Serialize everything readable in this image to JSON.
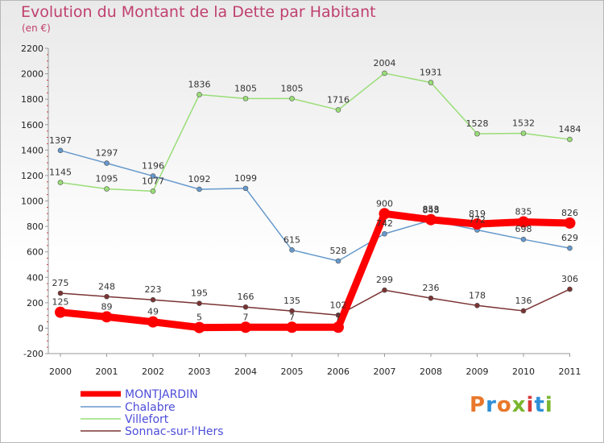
{
  "header": {
    "title": "Evolution du Montant de la Dette par Habitant",
    "subtitle": "(en €)"
  },
  "logo": {
    "text": "Proxiti",
    "colors": [
      "#e8782b",
      "#2e8fd8",
      "#e8782b",
      "#7ab62e",
      "#d83a3a",
      "#2e8fd8",
      "#7ab62e"
    ]
  },
  "chart_data": {
    "type": "line",
    "x": [
      "2000",
      "2001",
      "2002",
      "2003",
      "2004",
      "2005",
      "2006",
      "2007",
      "2008",
      "2009",
      "2010",
      "2011"
    ],
    "ylim": [
      -200,
      2200
    ],
    "yticks": [
      -200,
      0,
      200,
      400,
      600,
      800,
      1000,
      1200,
      1400,
      1600,
      1800,
      2000,
      2200
    ],
    "grid": false,
    "legend_position": "bottom-left",
    "series": [
      {
        "name": "MONTJARDIN",
        "color": "#ff0000",
        "values": [
          125,
          89,
          49,
          5,
          7,
          7,
          7,
          900,
          853,
          819,
          835,
          826
        ]
      },
      {
        "name": "Chalabre",
        "color": "#6699cc",
        "values": [
          1397,
          1297,
          1196,
          1092,
          1099,
          615,
          528,
          742,
          848,
          772,
          698,
          629
        ]
      },
      {
        "name": "Villefort",
        "color": "#99dd77",
        "values": [
          1145,
          1095,
          1077,
          1836,
          1805,
          1805,
          1716,
          2004,
          1931,
          1528,
          1532,
          1484
        ]
      },
      {
        "name": "Sonnac-sur-l'Hers",
        "color": "#7a3333",
        "values": [
          275,
          248,
          223,
          195,
          166,
          135,
          102,
          299,
          236,
          178,
          136,
          306
        ]
      }
    ]
  }
}
